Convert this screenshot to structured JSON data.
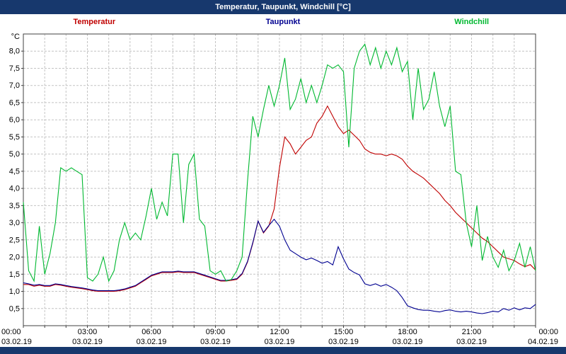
{
  "window": {
    "title": "Temperatur, Taupunkt, Windchill [°C]"
  },
  "colors": {
    "titlebar": "#17386d",
    "plot_border": "#404040",
    "grid": "#c4c4c4",
    "background": "#ffffff"
  },
  "chart_data": {
    "type": "line",
    "title": "Temperatur, Taupunkt, Windchill [°C]",
    "unit_label": "°C",
    "xlabel": "",
    "ylabel": "°C",
    "xlim": [
      0,
      24
    ],
    "ylim": [
      0,
      8.5
    ],
    "grid": "dashed",
    "legend_position": "top",
    "x": [
      0,
      0.25,
      0.5,
      0.75,
      1,
      1.25,
      1.5,
      1.75,
      2,
      2.25,
      2.5,
      2.75,
      3,
      3.25,
      3.5,
      3.75,
      4,
      4.25,
      4.5,
      4.75,
      5,
      5.25,
      5.5,
      5.75,
      6,
      6.25,
      6.5,
      6.75,
      7,
      7.25,
      7.5,
      7.75,
      8,
      8.25,
      8.5,
      8.75,
      9,
      9.25,
      9.5,
      9.75,
      10,
      10.25,
      10.5,
      10.75,
      11,
      11.25,
      11.5,
      11.75,
      12,
      12.25,
      12.5,
      12.75,
      13,
      13.25,
      13.5,
      13.75,
      14,
      14.25,
      14.5,
      14.75,
      15,
      15.25,
      15.5,
      15.75,
      16,
      16.25,
      16.5,
      16.75,
      17,
      17.25,
      17.5,
      17.75,
      18,
      18.25,
      18.5,
      18.75,
      19,
      19.25,
      19.5,
      19.75,
      20,
      20.25,
      20.5,
      20.75,
      21,
      21.25,
      21.5,
      21.75,
      22,
      22.25,
      22.5,
      22.75,
      23,
      23.25,
      23.5,
      23.75,
      24
    ],
    "series": [
      {
        "name": "Temperatur",
        "color": "#c00000",
        "values": [
          1.2,
          1.2,
          1.15,
          1.18,
          1.15,
          1.15,
          1.2,
          1.18,
          1.15,
          1.12,
          1.1,
          1.08,
          1.05,
          1.02,
          1.0,
          1.0,
          1.0,
          1.0,
          1.02,
          1.05,
          1.1,
          1.15,
          1.25,
          1.35,
          1.45,
          1.5,
          1.55,
          1.55,
          1.55,
          1.57,
          1.55,
          1.55,
          1.55,
          1.5,
          1.45,
          1.4,
          1.35,
          1.3,
          1.3,
          1.32,
          1.35,
          1.5,
          1.85,
          2.4,
          3.05,
          2.7,
          2.9,
          3.4,
          4.6,
          5.5,
          5.3,
          5.0,
          5.2,
          5.4,
          5.5,
          5.9,
          6.1,
          6.4,
          6.1,
          5.8,
          5.6,
          5.7,
          5.55,
          5.4,
          5.15,
          5.05,
          5.0,
          5.0,
          4.95,
          5.0,
          4.95,
          4.85,
          4.65,
          4.5,
          4.4,
          4.3,
          4.15,
          4.0,
          3.85,
          3.65,
          3.5,
          3.3,
          3.15,
          3.0,
          2.85,
          2.7,
          2.55,
          2.45,
          2.3,
          2.15,
          2.0,
          1.95,
          1.9,
          1.8,
          1.72,
          1.78,
          1.62
        ]
      },
      {
        "name": "Taupunkt",
        "color": "#000090",
        "values": [
          1.25,
          1.22,
          1.18,
          1.2,
          1.17,
          1.17,
          1.22,
          1.2,
          1.17,
          1.14,
          1.12,
          1.1,
          1.07,
          1.04,
          1.02,
          1.02,
          1.02,
          1.02,
          1.04,
          1.07,
          1.12,
          1.17,
          1.27,
          1.37,
          1.47,
          1.52,
          1.57,
          1.57,
          1.57,
          1.59,
          1.57,
          1.57,
          1.57,
          1.52,
          1.47,
          1.42,
          1.37,
          1.32,
          1.32,
          1.34,
          1.37,
          1.52,
          1.87,
          2.42,
          3.05,
          2.72,
          2.92,
          3.1,
          2.9,
          2.5,
          2.2,
          2.1,
          2.0,
          1.92,
          1.97,
          1.9,
          1.82,
          1.87,
          1.77,
          2.3,
          1.95,
          1.65,
          1.55,
          1.48,
          1.22,
          1.17,
          1.22,
          1.15,
          1.2,
          1.12,
          1.02,
          0.82,
          0.58,
          0.52,
          0.47,
          0.45,
          0.45,
          0.42,
          0.4,
          0.44,
          0.46,
          0.42,
          0.4,
          0.42,
          0.4,
          0.37,
          0.35,
          0.38,
          0.42,
          0.4,
          0.5,
          0.45,
          0.52,
          0.46,
          0.52,
          0.5,
          0.62
        ]
      },
      {
        "name": "Windchill",
        "color": "#00b830",
        "values": [
          3.6,
          1.6,
          1.3,
          2.9,
          1.5,
          2.1,
          3.0,
          4.6,
          4.5,
          4.6,
          4.5,
          4.4,
          1.4,
          1.3,
          1.5,
          2.0,
          1.3,
          1.6,
          2.5,
          3.0,
          2.5,
          2.7,
          2.5,
          3.2,
          4.0,
          3.1,
          3.6,
          3.2,
          5.0,
          5.0,
          3.0,
          4.7,
          5.0,
          3.1,
          2.9,
          1.6,
          1.5,
          1.6,
          1.3,
          1.35,
          1.6,
          2.0,
          4.2,
          6.1,
          5.5,
          6.3,
          7.0,
          6.4,
          7.0,
          7.8,
          6.3,
          6.6,
          7.2,
          6.5,
          7.0,
          6.5,
          7.0,
          7.6,
          7.5,
          7.6,
          7.4,
          5.2,
          7.5,
          8.0,
          8.2,
          7.6,
          8.1,
          7.5,
          8.0,
          7.6,
          8.1,
          7.4,
          7.7,
          6.0,
          7.5,
          6.3,
          6.6,
          7.4,
          6.4,
          5.8,
          6.4,
          4.5,
          4.4,
          3.0,
          2.3,
          3.5,
          1.9,
          2.6,
          2.0,
          1.7,
          2.2,
          1.6,
          1.9,
          2.4,
          1.7,
          2.3,
          1.6
        ]
      }
    ],
    "ytick_values": [
      8.0,
      7.5,
      7.0,
      6.5,
      6.0,
      5.5,
      5.0,
      4.5,
      4.0,
      3.5,
      3.0,
      2.5,
      2.0,
      1.5,
      1.0,
      0.5
    ],
    "ytick_labels": [
      "8,0",
      "7,5",
      "7,0",
      "6,5",
      "6,0",
      "5,5",
      "5,0",
      "4,5",
      "4,0",
      "3,5",
      "3,0",
      "2,5",
      "2,0",
      "1,5",
      "1,0",
      "0,5"
    ],
    "xticks": [
      {
        "t": 0,
        "time": "00:00",
        "date": "03.02.19"
      },
      {
        "t": 3,
        "time": "03:00",
        "date": "03.02.19"
      },
      {
        "t": 6,
        "time": "06:00",
        "date": "03.02.19"
      },
      {
        "t": 9,
        "time": "09:00",
        "date": "03.02.19"
      },
      {
        "t": 12,
        "time": "12:00",
        "date": "03.02.19"
      },
      {
        "t": 15,
        "time": "15:00",
        "date": "03.02.19"
      },
      {
        "t": 18,
        "time": "18:00",
        "date": "03.02.19"
      },
      {
        "t": 21,
        "time": "21:00",
        "date": "03.02.19"
      },
      {
        "t": 24,
        "time": "00:00",
        "date": "04.02.19"
      }
    ]
  }
}
